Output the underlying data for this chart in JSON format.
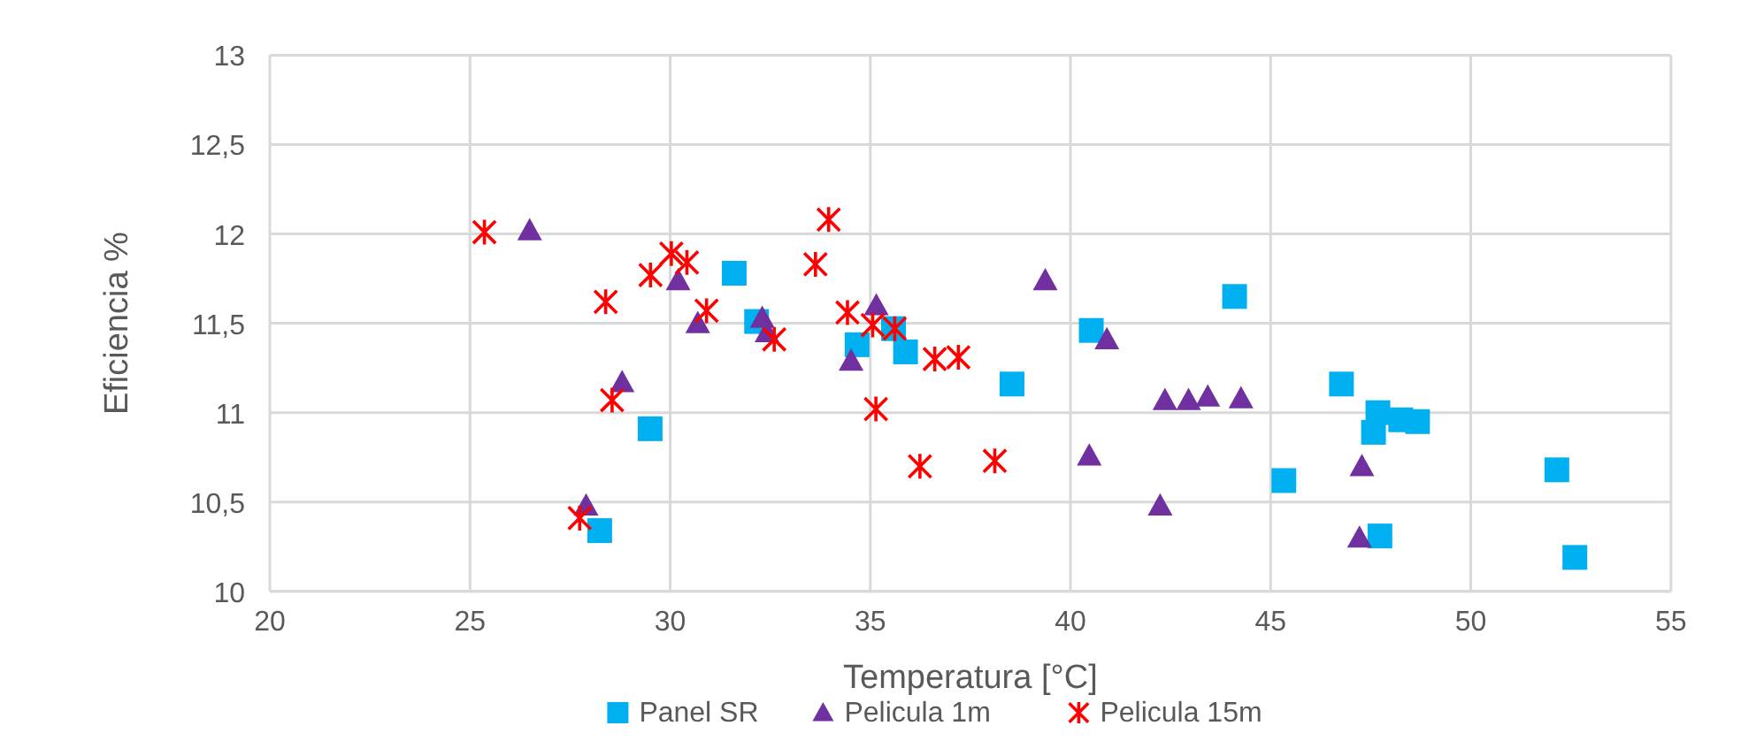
{
  "chart_data": {
    "type": "scatter",
    "xlabel": "Temperatura [°C]",
    "ylabel": "Eficiencia %",
    "xlim": [
      20,
      55
    ],
    "xticks": [
      20,
      25,
      30,
      35,
      40,
      45,
      50,
      55
    ],
    "ylim": [
      10,
      13
    ],
    "yticks": [
      10,
      {
        "value": 10.5,
        "label": "10,5"
      },
      11,
      {
        "value": 11.5,
        "label": "11,5"
      },
      12,
      {
        "value": 12.5,
        "label": "12,5"
      },
      13
    ],
    "grid": true,
    "legend": "bottom",
    "series": [
      {
        "name": "Panel SR",
        "color": "#00b0f0",
        "marker": "square",
        "x": [
          28.24,
          29.5,
          31.6,
          32.16,
          34.67,
          35.58,
          35.88,
          38.54,
          40.52,
          44.1,
          45.33,
          46.77,
          47.57,
          47.68,
          47.73,
          48.25,
          48.67,
          52.15,
          52.6
        ],
        "values": [
          10.34,
          10.91,
          11.78,
          11.51,
          11.38,
          11.47,
          11.34,
          11.16,
          11.46,
          11.65,
          10.62,
          11.16,
          10.89,
          11.0,
          10.31,
          10.96,
          10.95,
          10.68,
          10.19
        ]
      },
      {
        "name": "Pelicula 1m",
        "color": "#7030a0",
        "marker": "triangle",
        "x": [
          26.49,
          27.9,
          28.8,
          30.2,
          30.69,
          32.3,
          32.42,
          34.52,
          35.15,
          39.37,
          40.47,
          40.91,
          42.24,
          42.36,
          42.95,
          43.43,
          44.26,
          47.22,
          47.28
        ],
        "values": [
          12.02,
          10.48,
          11.17,
          11.74,
          11.5,
          11.53,
          11.45,
          11.29,
          11.6,
          11.74,
          10.76,
          11.41,
          10.48,
          11.07,
          11.07,
          11.09,
          11.08,
          10.3,
          10.7
        ]
      },
      {
        "name": "Pelicula 15m",
        "color": "#ff0000",
        "marker": "cross",
        "x": [
          25.36,
          27.74,
          28.39,
          28.55,
          29.51,
          30.03,
          30.42,
          30.91,
          32.6,
          33.63,
          33.96,
          34.43,
          35.06,
          35.14,
          35.61,
          36.24,
          36.61,
          37.2,
          38.11
        ],
        "values": [
          12.01,
          10.41,
          11.62,
          11.07,
          11.77,
          11.89,
          11.84,
          11.57,
          11.41,
          11.83,
          12.08,
          11.56,
          11.49,
          11.02,
          11.47,
          10.7,
          11.3,
          11.31,
          10.73
        ]
      }
    ]
  }
}
